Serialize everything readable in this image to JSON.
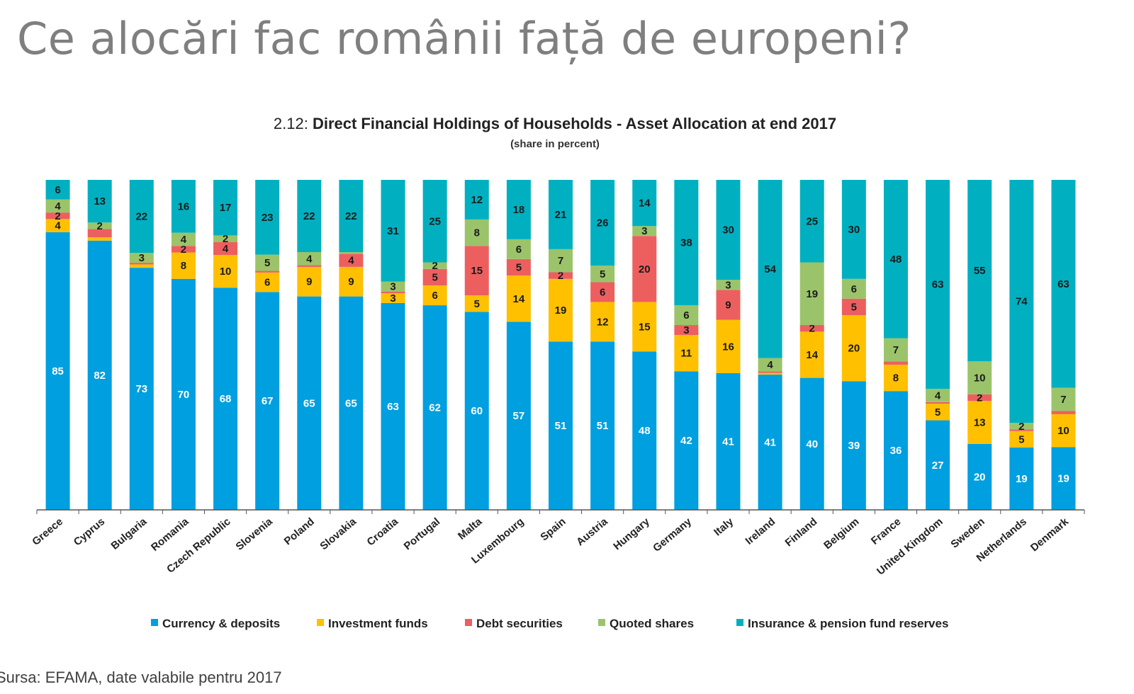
{
  "slide": {
    "title": "Ce alocări fac românii față de europeni?",
    "source": "Sursa: EFAMA, date valabile pentru 2017"
  },
  "chart_data": {
    "type": "bar",
    "stacked": true,
    "title_prefix": "2.12: ",
    "title": "Direct Financial Holdings of Households - Asset Allocation at end 2017",
    "subtitle": "(share in percent)",
    "xlabel": "",
    "ylabel": "",
    "ylim": [
      0,
      100
    ],
    "grid": false,
    "legend_position": "bottom",
    "categories": [
      "Greece",
      "Cyprus",
      "Bulgaria",
      "Romania",
      "Czech Republic",
      "Slovenia",
      "Poland",
      "Slovakia",
      "Croatia",
      "Portugal",
      "Malta",
      "Luxembourg",
      "Spain",
      "Austria",
      "Hungary",
      "Germany",
      "Italy",
      "Ireland",
      "Finland",
      "Belgium",
      "France",
      "United Kingdom",
      "Sweden",
      "Netherlands",
      "Denmark"
    ],
    "series": [
      {
        "name": "Currency & deposits",
        "color": "#009fdf",
        "values": [
          85,
          82,
          73,
          70,
          68,
          67,
          65,
          65,
          63,
          62,
          60,
          57,
          51,
          51,
          48,
          42,
          41,
          41,
          40,
          39,
          36,
          27,
          20,
          19,
          19
        ],
        "labels": [
          "85",
          "82",
          "73",
          "70",
          "68",
          "67",
          "65",
          "65",
          "63",
          "62",
          "60",
          "57",
          "51",
          "51",
          "48",
          "42",
          "41",
          "41",
          "40",
          "39",
          "36",
          "27",
          "20",
          "19",
          "19"
        ]
      },
      {
        "name": "Investment funds",
        "color": "#ffc000",
        "values": [
          4,
          1,
          1,
          8,
          10,
          6,
          9,
          9,
          3,
          6,
          5,
          14,
          19,
          12,
          15,
          11,
          16,
          0.5,
          14,
          20,
          8,
          5,
          13,
          5,
          10
        ],
        "labels": [
          "4",
          "",
          "",
          "8",
          "10",
          "6",
          "9",
          "9",
          "3",
          "6",
          "5",
          "14",
          "19",
          "12",
          "15",
          "11",
          "16",
          "",
          "14",
          "20",
          "8",
          "5",
          "13",
          "5",
          "10"
        ]
      },
      {
        "name": "Debt securities",
        "color": "#ed5f5f",
        "values": [
          2,
          2.5,
          0.5,
          2,
          4,
          0.5,
          0.5,
          4,
          0.5,
          5,
          15,
          5,
          2,
          6,
          20,
          3,
          9,
          0.5,
          2,
          5,
          1,
          0.5,
          2,
          0.5,
          1
        ],
        "labels": [
          "2",
          "",
          "",
          "2",
          "4",
          "",
          "",
          "4",
          "",
          "5",
          "15",
          "5",
          "2",
          "6",
          "20",
          "3",
          "9",
          "",
          "2",
          "5",
          "",
          "",
          "2",
          "",
          ""
        ]
      },
      {
        "name": "Quoted shares",
        "color": "#9bc46a",
        "values": [
          4,
          2,
          3,
          4,
          2,
          5,
          4,
          0.5,
          3,
          2,
          8,
          6,
          7,
          5,
          3,
          6,
          3,
          4,
          19,
          6,
          7,
          4,
          10,
          2,
          7
        ],
        "labels": [
          "4",
          "2",
          "3",
          "4",
          "2",
          "5",
          "4",
          "",
          "3",
          "2",
          "8",
          "6",
          "7",
          "5",
          "3",
          "6",
          "3",
          "4",
          "19",
          "6",
          "7",
          "4",
          "10",
          "2",
          "7"
        ]
      },
      {
        "name": "Insurance & pension fund reserves",
        "color": "#00b0c0",
        "values": [
          6,
          13,
          22,
          16,
          17,
          23,
          22,
          22,
          31,
          25,
          12,
          18,
          21,
          26,
          14,
          38,
          30,
          54,
          25,
          30,
          48,
          63,
          55,
          74,
          63
        ],
        "labels": [
          "6",
          "13",
          "22",
          "16",
          "17",
          "23",
          "22",
          "22",
          "31",
          "25",
          "12",
          "18",
          "21",
          "26",
          "14",
          "38",
          "30",
          "54",
          "25",
          "30",
          "48",
          "63",
          "55",
          "74",
          "63"
        ]
      }
    ]
  }
}
